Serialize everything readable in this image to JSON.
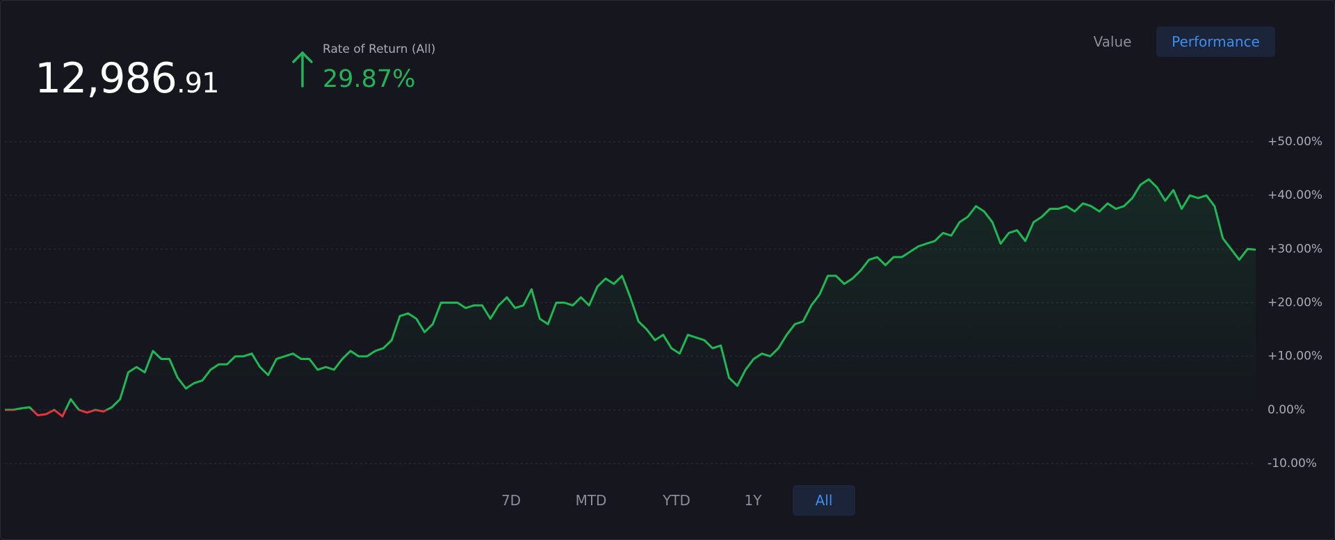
{
  "header": {
    "value_integer": "12,986",
    "value_decimal": ".91",
    "return_label": "Rate of Return (All)",
    "return_value": "29.87%"
  },
  "view_toggle": {
    "options": [
      "Value",
      "Performance"
    ],
    "active": 1
  },
  "periods": {
    "options": [
      "7D",
      "MTD",
      "YTD",
      "1Y",
      "All"
    ],
    "active": 4
  },
  "chart_data": {
    "type": "line",
    "color": "#1db954",
    "negative_color": "#e5343d",
    "grid": true,
    "ylim": [
      -10,
      50
    ],
    "yticks": [
      {
        "value": 50,
        "label": "+50.00%"
      },
      {
        "value": 40,
        "label": "+40.00%"
      },
      {
        "value": 30,
        "label": "+30.00%"
      },
      {
        "value": 20,
        "label": "+20.00%"
      },
      {
        "value": 10,
        "label": "+10.00%"
      },
      {
        "value": 0,
        "label": "0.00%"
      },
      {
        "value": -10,
        "label": "-10.00%"
      }
    ],
    "values": [
      0,
      0,
      0.3,
      0.5,
      -1,
      -0.8,
      0,
      -1.2,
      2,
      0,
      -0.5,
      0,
      -0.3,
      0.5,
      2,
      7,
      8,
      7,
      11,
      9.5,
      9.5,
      6,
      4,
      5,
      5.5,
      7.5,
      8.5,
      8.5,
      10,
      10,
      10.5,
      8,
      6.5,
      9.5,
      10,
      10.5,
      9.5,
      9.5,
      7.5,
      8,
      7.5,
      9.5,
      11,
      10,
      10,
      11,
      11.5,
      13,
      17.5,
      18,
      17,
      14.5,
      16,
      20,
      20,
      20,
      19,
      19.5,
      19.5,
      17,
      19.5,
      21,
      19,
      19.5,
      22.5,
      17,
      16,
      20,
      20,
      19.5,
      21,
      19.5,
      23,
      24.5,
      23.5,
      25,
      21,
      16.5,
      15,
      13,
      14,
      11.5,
      10.5,
      14,
      13.5,
      13,
      11.5,
      12,
      6,
      4.5,
      7.5,
      9.5,
      10.5,
      10,
      11.5,
      14,
      16,
      16.5,
      19.5,
      21.5,
      25,
      25,
      23.5,
      24.5,
      26,
      28,
      28.5,
      27,
      28.5,
      28.5,
      29.5,
      30.5,
      31,
      31.5,
      33,
      32.5,
      35,
      36,
      38,
      37,
      35,
      31,
      33,
      33.5,
      31.5,
      35,
      36,
      37.5,
      37.5,
      38,
      37,
      38.5,
      38,
      37,
      38.5,
      37.5,
      38,
      39.5,
      42,
      43,
      41.5,
      39,
      41,
      37.5,
      40,
      39.5,
      40,
      38,
      32,
      30,
      28,
      30,
      29.87
    ]
  }
}
